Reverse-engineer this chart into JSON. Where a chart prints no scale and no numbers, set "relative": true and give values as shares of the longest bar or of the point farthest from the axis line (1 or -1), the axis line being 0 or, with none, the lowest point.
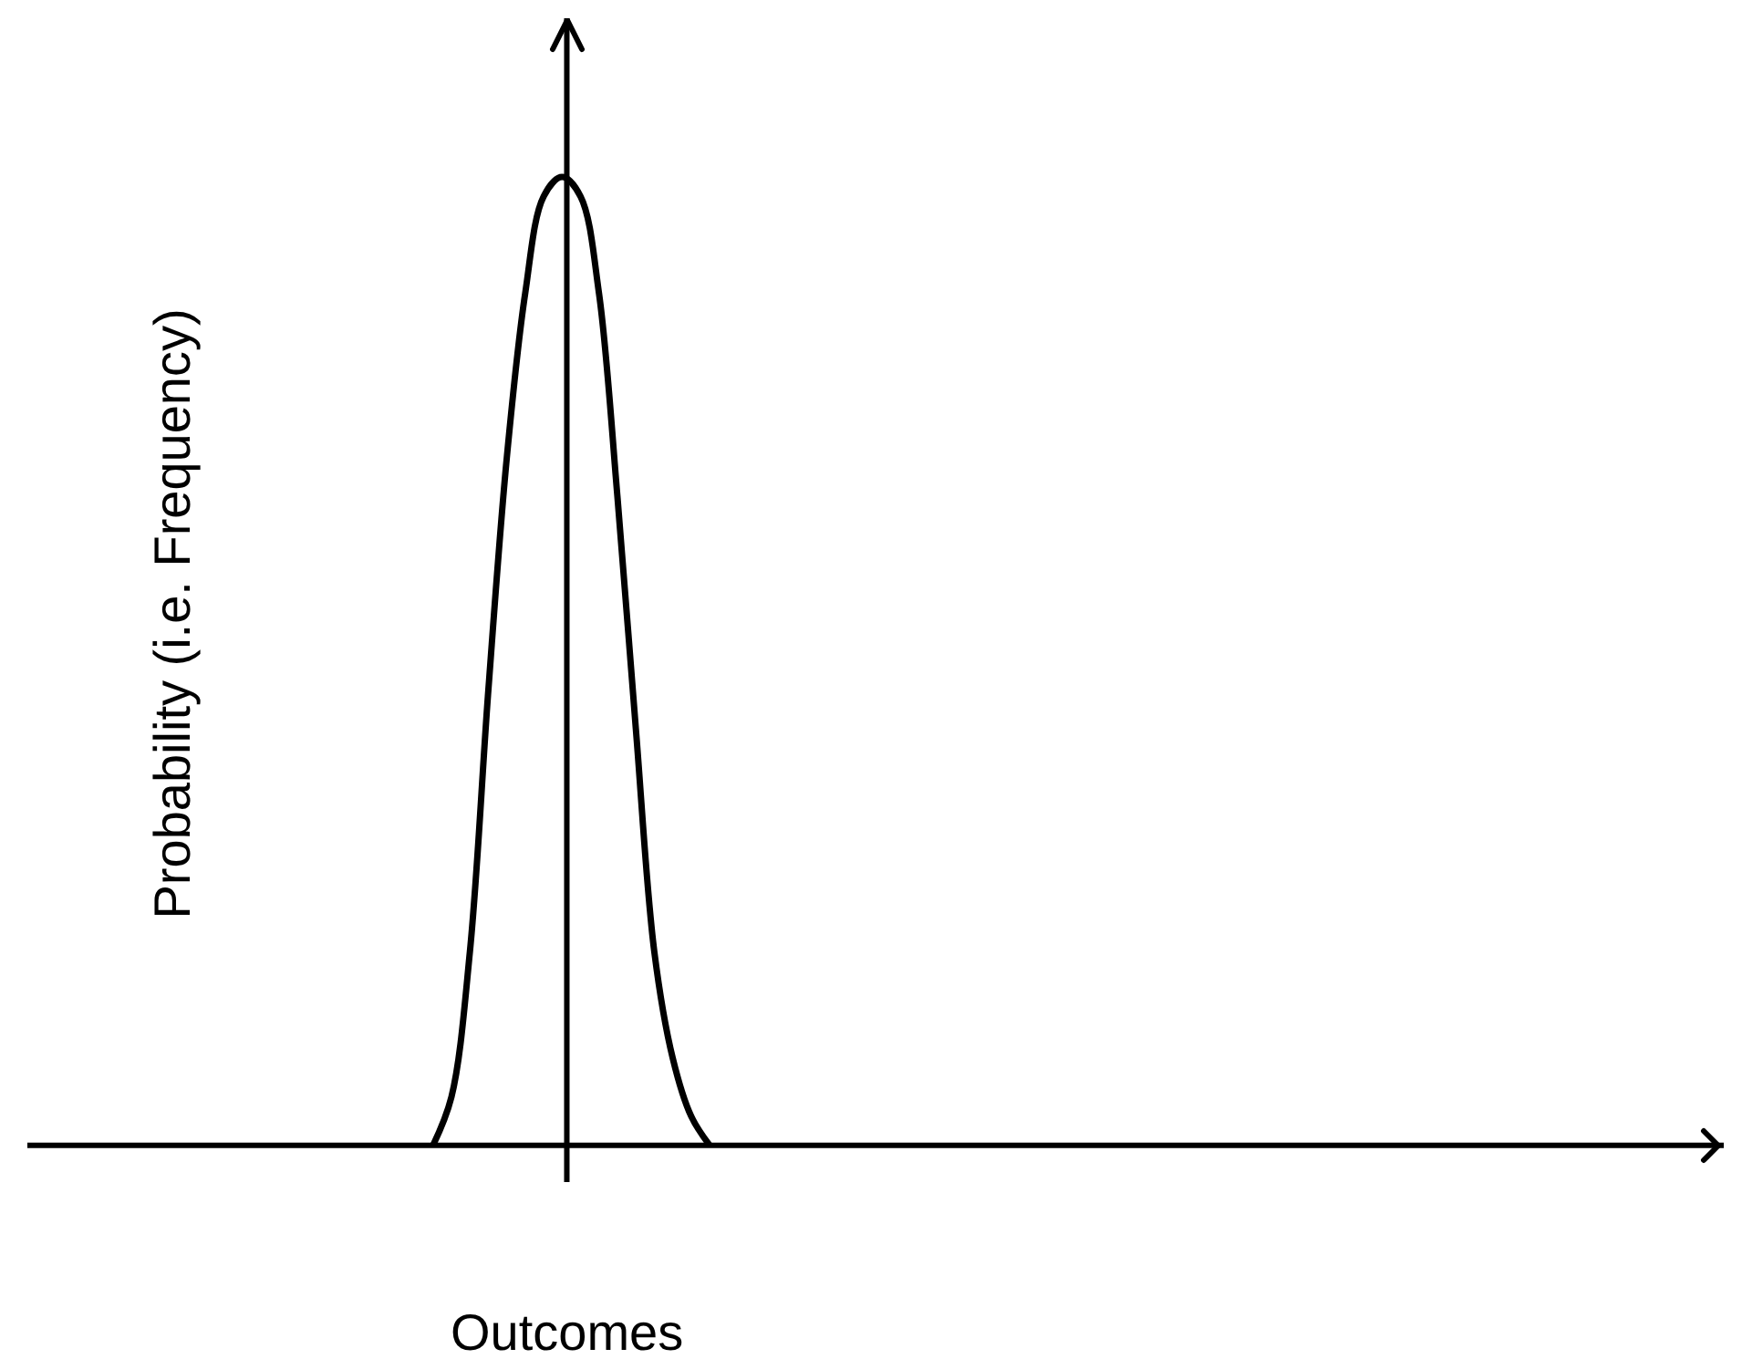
{
  "chart_data": {
    "type": "line",
    "relative": true,
    "xlabel": "Outcomes",
    "ylabel": "Probability (i.e. Frequency)",
    "color": "#000000",
    "categories": [
      null,
      null,
      null,
      null,
      null,
      null,
      null,
      null,
      null,
      null,
      null,
      null,
      null,
      null,
      null,
      null,
      null,
      null,
      null,
      null,
      null,
      null,
      null,
      null,
      null,
      null,
      null,
      null,
      null,
      null,
      null,
      null,
      null,
      null,
      null,
      null,
      null,
      null,
      null,
      null,
      null,
      null,
      null,
      null,
      null,
      null,
      null,
      null,
      null,
      null,
      null,
      null,
      null,
      null,
      null,
      null,
      null,
      null,
      null,
      null,
      null,
      null,
      null,
      null,
      null,
      null,
      null,
      null,
      null,
      null,
      null,
      null,
      null,
      null,
      null,
      null,
      null,
      null,
      null,
      null,
      null,
      null,
      null,
      null,
      null,
      null,
      null,
      null,
      null,
      null,
      null,
      null,
      null
    ],
    "values": [
      null,
      null,
      null,
      null,
      null,
      null,
      null,
      null,
      null,
      null,
      null,
      null,
      null,
      null,
      null,
      null,
      null,
      null,
      null,
      null,
      null,
      null,
      0,
      0.05,
      0.2,
      0.47,
      0.71,
      0.88,
      0.98,
      1.0,
      0.98,
      0.88,
      0.67,
      0.43,
      0.2,
      0.09,
      0.03,
      0,
      null,
      null,
      null,
      null,
      null,
      null,
      null,
      null,
      null,
      null,
      null,
      null,
      null,
      null,
      null,
      null,
      null,
      null,
      null,
      null,
      null,
      null,
      null,
      null,
      null,
      null,
      null,
      null,
      null,
      null,
      null,
      null,
      null,
      null,
      null,
      null,
      null,
      null,
      null,
      null,
      null,
      null,
      null,
      null,
      null,
      null,
      null,
      null,
      null,
      null,
      null,
      null,
      null,
      null,
      null
    ]
  }
}
